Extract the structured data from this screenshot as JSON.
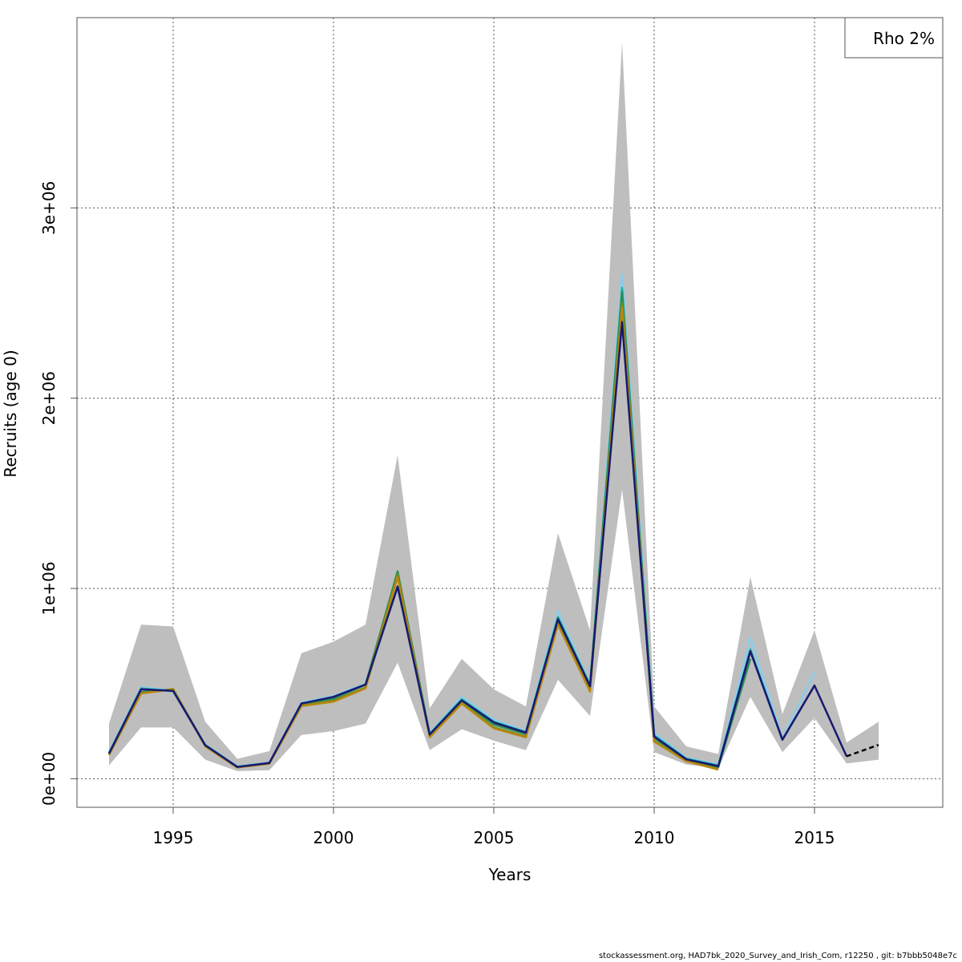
{
  "chart_data": {
    "type": "line",
    "xlabel": "Years",
    "ylabel": "Recruits (age 0)",
    "xlim": [
      1992,
      2019
    ],
    "ylim": [
      -150000,
      4000000
    ],
    "x_ticks": [
      1995,
      2000,
      2005,
      2010,
      2015
    ],
    "y_ticks": [
      0,
      1000000,
      2000000,
      3000000
    ],
    "y_tick_labels": [
      "0e+00",
      "1e+06",
      "2e+06",
      "3e+06"
    ],
    "grid": true,
    "legend": {
      "text": "Rho 2%",
      "placement": "top-right"
    },
    "confidence_band": {
      "x": [
        1993,
        1994,
        1995,
        1996,
        1997,
        1998,
        1999,
        2000,
        2001,
        2002,
        2003,
        2004,
        2005,
        2006,
        2007,
        2008,
        2009,
        2010,
        2011,
        2012,
        2013,
        2014,
        2015,
        2016,
        2017
      ],
      "upper": [
        290000,
        810000,
        800000,
        300000,
        105000,
        145000,
        660000,
        720000,
        810000,
        1700000,
        370000,
        630000,
        470000,
        380000,
        1290000,
        780000,
        3870000,
        380000,
        170000,
        130000,
        1060000,
        340000,
        780000,
        190000,
        300000
      ],
      "lower": [
        70000,
        270000,
        270000,
        100000,
        40000,
        45000,
        230000,
        250000,
        290000,
        610000,
        150000,
        260000,
        200000,
        150000,
        520000,
        330000,
        1520000,
        140000,
        75000,
        55000,
        430000,
        140000,
        320000,
        80000,
        100000
      ],
      "color": "#bebebe"
    },
    "series": [
      {
        "color": "#87ceeb",
        "x": [
          1993,
          1994,
          1995,
          1996,
          1997,
          1998,
          1999,
          2000,
          2001,
          2002,
          2003,
          2004,
          2005,
          2006,
          2007,
          2008,
          2009,
          2010,
          2011,
          2012,
          2013,
          2014,
          2015
        ],
        "y": [
          140000,
          480000,
          465000,
          180000,
          65000,
          85000,
          400000,
          435000,
          500000,
          1080000,
          240000,
          430000,
          310000,
          250000,
          880000,
          500000,
          2650000,
          240000,
          110000,
          75000,
          740000,
          210000,
          560000
        ]
      },
      {
        "color": "#20b2aa",
        "x": [
          1993,
          1994,
          1995,
          1996,
          1997,
          1998,
          1999,
          2000,
          2001,
          2002,
          2003,
          2004,
          2005,
          2006,
          2007,
          2008,
          2009,
          2010,
          2011,
          2012,
          2013,
          2014
        ],
        "y": [
          135000,
          475000,
          460000,
          178000,
          63000,
          84000,
          395000,
          428000,
          495000,
          1070000,
          236000,
          418000,
          300000,
          245000,
          850000,
          492000,
          2580000,
          228000,
          106000,
          70000,
          680000,
          205000
        ]
      },
      {
        "color": "#1e6fa8",
        "x": [
          1993,
          1994,
          1995,
          1996,
          1997,
          1998,
          1999,
          2000,
          2001,
          2002,
          2003,
          2004,
          2005,
          2006,
          2007,
          2008,
          2009,
          2010,
          2011,
          2012,
          2013,
          2014,
          2015
        ],
        "y": [
          132000,
          470000,
          462000,
          176000,
          62000,
          83000,
          395000,
          430000,
          495000,
          1010000,
          232000,
          412000,
          296000,
          242000,
          838000,
          486000,
          2420000,
          222000,
          102000,
          66000,
          670000,
          205000,
          490000
        ]
      },
      {
        "color": "#2e8b57",
        "x": [
          1993,
          1994,
          1995,
          1996,
          1997,
          1998,
          1999,
          2000,
          2001,
          2002,
          2003,
          2004,
          2005,
          2006,
          2007,
          2008,
          2009,
          2010,
          2011,
          2012,
          2013
        ],
        "y": [
          133000,
          455000,
          470000,
          175000,
          62000,
          82000,
          395000,
          420000,
          495000,
          1090000,
          232000,
          410000,
          285000,
          235000,
          845000,
          490000,
          2560000,
          215000,
          100000,
          60000,
          630000
        ]
      },
      {
        "color": "#6b8e23",
        "x": [
          1993,
          1994,
          1995,
          1996,
          1997,
          1998,
          1999,
          2000,
          2001,
          2002,
          2003,
          2004,
          2005,
          2006,
          2007,
          2008,
          2009,
          2010,
          2011,
          2012
        ],
        "y": [
          128000,
          450000,
          472000,
          172000,
          60000,
          80000,
          385000,
          410000,
          480000,
          1075000,
          222000,
          400000,
          270000,
          222000,
          815000,
          465000,
          2500000,
          200000,
          95000,
          52000
        ]
      },
      {
        "color": "#b8860b",
        "x": [
          1993,
          1994,
          1995,
          1996,
          1997,
          1998,
          1999,
          2000,
          2001,
          2002,
          2003,
          2004,
          2005,
          2006,
          2007,
          2008,
          2009,
          2010,
          2011,
          2012
        ],
        "y": [
          125000,
          448000,
          470000,
          170000,
          59000,
          79000,
          382000,
          405000,
          475000,
          1060000,
          218000,
          395000,
          265000,
          218000,
          810000,
          458000,
          2480000,
          195000,
          92000,
          48000
        ]
      },
      {
        "color": "#191970",
        "x": [
          1993,
          1994,
          1995,
          1996,
          1997,
          1998,
          1999,
          2000,
          2001,
          2002,
          2003,
          2004,
          2005,
          2006,
          2007,
          2008,
          2009,
          2010,
          2011,
          2012,
          2013,
          2014,
          2015,
          2016
        ],
        "y": [
          132000,
          470000,
          462000,
          176000,
          62000,
          83000,
          395000,
          430000,
          495000,
          1010000,
          232000,
          412000,
          296000,
          242000,
          838000,
          486000,
          2400000,
          222000,
          102000,
          66000,
          670000,
          205000,
          490000,
          118000
        ]
      },
      {
        "color": "#000000",
        "dashed": true,
        "x": [
          2016,
          2017
        ],
        "y": [
          118000,
          178000
        ]
      }
    ]
  },
  "footer": "stockassessment.org, HAD7bk_2020_Survey_and_Irish_Com, r12250 , git: b7bbb5048e7c"
}
